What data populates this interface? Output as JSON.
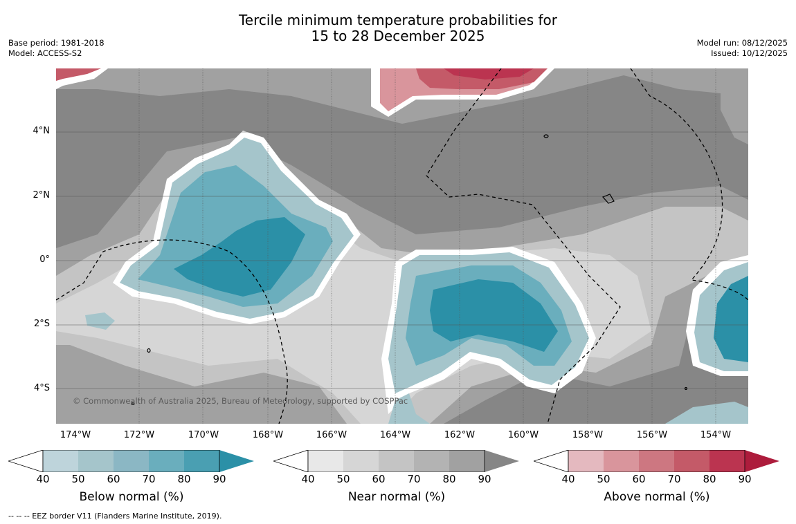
{
  "title": {
    "line1": "Tercile minimum temperature probabilities for",
    "line2": "15 to 28 December 2025"
  },
  "meta": {
    "base_period": "Base period: 1981-2018",
    "model": "Model: ACCESS-S2",
    "model_run": "Model run: 08/12/2025",
    "issued": "Issued: 10/12/2025"
  },
  "axes": {
    "lat_ticks": [
      "4°N",
      "2°N",
      "0°",
      "2°S",
      "4°S"
    ],
    "lon_ticks": [
      "174°W",
      "172°W",
      "170°W",
      "168°W",
      "166°W",
      "164°W",
      "162°W",
      "160°W",
      "158°W",
      "156°W",
      "154°W"
    ]
  },
  "copyright": "© Commonwealth of Australia 2025, Bureau of Meteorology, supported by COSPPac",
  "colorbars": [
    {
      "title": "Below normal (%)",
      "ticks": [
        "40",
        "50",
        "60",
        "70",
        "80",
        "90"
      ],
      "colors": [
        "#bed4db",
        "#a5c5cb",
        "#8bb7c4",
        "#6aaebd",
        "#4a9fb2",
        "#2b90a7"
      ]
    },
    {
      "title": "Near normal (%)",
      "ticks": [
        "40",
        "50",
        "60",
        "70",
        "80",
        "90"
      ],
      "colors": [
        "#e8e8e8",
        "#d6d6d6",
        "#c4c4c4",
        "#b3b3b3",
        "#a1a1a1",
        "#868686"
      ]
    },
    {
      "title": "Above normal (%)",
      "ticks": [
        "40",
        "50",
        "60",
        "70",
        "80",
        "90"
      ],
      "colors": [
        "#e4b9bf",
        "#d9959c",
        "#cd7781",
        "#c45a68",
        "#bb3450",
        "#ad1c3c"
      ]
    }
  ],
  "footnote": "--  --  -- EEZ border V11 (Flanders Marine Institute, 2019).",
  "map_colors": {
    "near_dark": "#868686",
    "near_mid": "#a1a1a1",
    "near_light": "#c4c4c4",
    "near_pale": "#d6d6d6",
    "below_light": "#a5c5cb",
    "below_mid": "#6aaebd",
    "below_dark": "#2b90a7",
    "above_light": "#d9959c",
    "above_mid": "#c45a68",
    "above_dark": "#bb3450"
  }
}
